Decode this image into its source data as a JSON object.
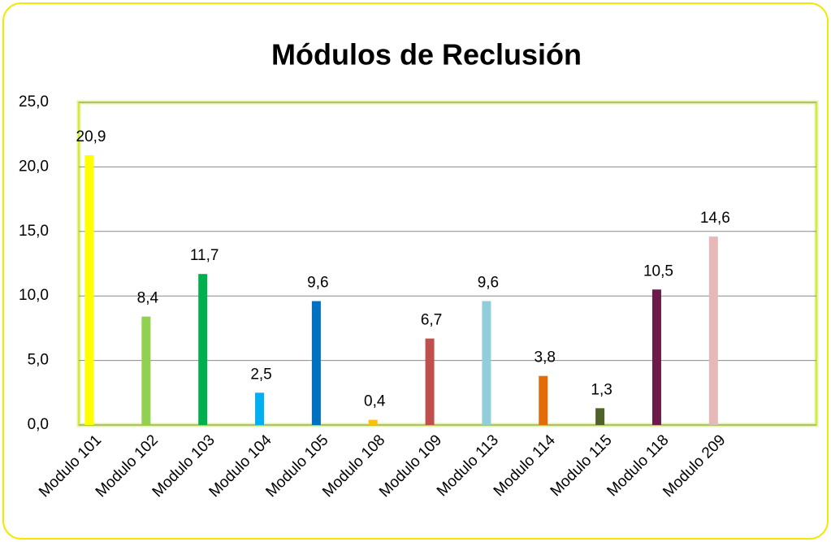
{
  "chart_data": {
    "type": "bar",
    "title": "Módulos de Reclusión",
    "categories": [
      "Modulo 101",
      "Modulo 102",
      "Modulo 103",
      "Modulo 104",
      "Modulo 105",
      "Modulo 108",
      "Modulo 109",
      "Modulo 113",
      "Modulo 114",
      "Modulo 115",
      "Modulo 118",
      "Modulo 209",
      null
    ],
    "values": [
      20.9,
      8.4,
      11.7,
      2.5,
      9.6,
      0.4,
      6.7,
      9.6,
      3.8,
      1.3,
      10.5,
      14.6,
      null
    ],
    "value_labels": [
      "20,9",
      "8,4",
      "11,7",
      "2,5",
      "9,6",
      "0,4",
      "6,7",
      "9,6",
      "3,8",
      "1,3",
      "10,5",
      "14,6",
      null
    ],
    "colors": [
      "#ffff00",
      "#92d050",
      "#00b050",
      "#00b0f0",
      "#0070c0",
      "#ffc000",
      "#c0504d",
      "#92cddc",
      "#e36c09",
      "#4f6228",
      "#6d1b4a",
      "#e6b9b8",
      null
    ],
    "ylim": [
      0,
      25
    ],
    "yticks": [
      {
        "value": 0,
        "label": "0,0"
      },
      {
        "value": 5,
        "label": "5,0"
      },
      {
        "value": 10,
        "label": "10,0"
      },
      {
        "value": 15,
        "label": "15,0"
      },
      {
        "value": 20,
        "label": "20,0"
      },
      {
        "value": 25,
        "label": "25,0"
      }
    ],
    "grid": true
  }
}
